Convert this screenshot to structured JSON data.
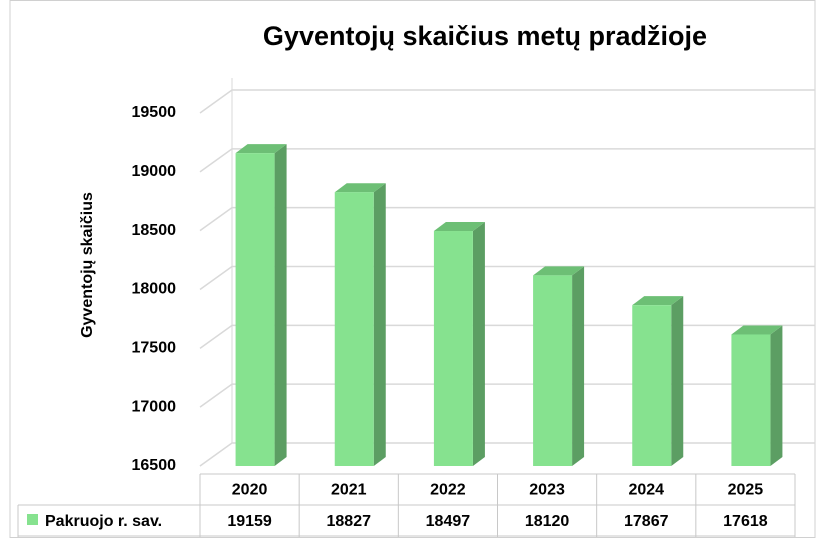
{
  "chart_data": {
    "type": "bar3d",
    "title": "Gyventojų skaičius metų pradžioje",
    "y_label": "Gyventojų skaičius",
    "categories": [
      "2020",
      "2021",
      "2022",
      "2023",
      "2024",
      "2025"
    ],
    "series": [
      {
        "name": "Pakruojo r. sav.",
        "color": "#86e28f",
        "values": [
          19159,
          18827,
          18497,
          18120,
          17867,
          17618
        ]
      }
    ],
    "ylim": [
      16500,
      19500
    ],
    "yticks": [
      16500,
      17000,
      17500,
      18000,
      18500,
      19000,
      19500
    ],
    "grid": true
  }
}
